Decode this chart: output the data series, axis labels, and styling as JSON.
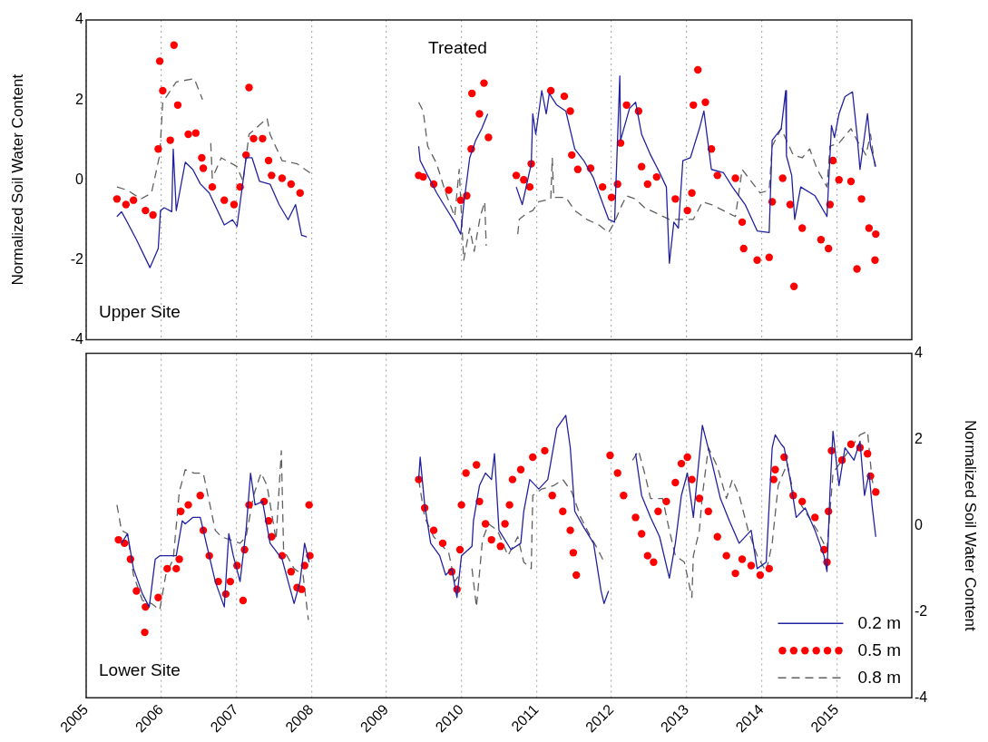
{
  "chart_data": [
    {
      "type": "line",
      "title": "Treated",
      "ylabel": "Normalized Soil Water Content",
      "annotations": [
        "Upper Site"
      ],
      "xlim": [
        2005,
        2016
      ],
      "xticks": [
        2005,
        2006,
        2007,
        2008,
        2009,
        2010,
        2011,
        2012,
        2013,
        2014,
        2015
      ],
      "ylim": [
        -4,
        4
      ],
      "yticks": [
        -4,
        -2,
        0,
        2,
        4
      ],
      "grid": "x",
      "tick_labels": "y",
      "series": [
        {
          "line_style": "solid",
          "color": "#2222a0",
          "x": [
            2005.41,
            2005.47,
            2005.53,
            2005.67,
            2005.85,
            2005.96,
            2005.99,
            2006.04,
            2006.14,
            2006.16,
            2006.2,
            2006.32,
            2006.42,
            2006.52,
            2006.64,
            2006.84,
            2006.95,
            2007.01,
            2007.13,
            2007.21,
            2007.31,
            2007.45,
            2007.57,
            2007.69,
            2007.79,
            2007.87,
            2007.94,
            2008.7,
            2009.43,
            2009.45,
            2009.55,
            2009.67,
            2009.79,
            2009.91,
            2009.99,
            2010.03,
            2010.11,
            2010.19,
            2010.27,
            2010.35,
            2010.5,
            2010.73,
            2010.81,
            2010.93,
            2010.95,
            2010.99,
            2011.07,
            2011.13,
            2011.17,
            2011.27,
            2011.39,
            2011.51,
            2011.63,
            2011.76,
            2011.86,
            2011.96,
            2012.04,
            2012.11,
            2012.12,
            2012.24,
            2012.32,
            2012.4,
            2012.52,
            2012.64,
            2012.73,
            2012.77,
            2012.83,
            2012.89,
            2012.95,
            2013.05,
            2013.17,
            2013.23,
            2013.33,
            2013.49,
            2013.61,
            2013.78,
            2013.94,
            2014.1,
            2014.14,
            2014.26,
            2014.32,
            2014.33,
            2014.4,
            2014.44,
            2014.52,
            2014.71,
            2014.87,
            2014.93,
            2014.97,
            2015.03,
            2015.11,
            2015.21,
            2015.27,
            2015.31,
            2015.41,
            2015.45,
            2015.52
          ],
          "values": [
            -0.92,
            -0.8,
            -1.0,
            -1.5,
            -2.2,
            -1.72,
            -0.77,
            -0.7,
            -0.8,
            0.77,
            -0.77,
            0.44,
            0.26,
            -0.1,
            -0.33,
            -1.13,
            -1.0,
            -1.17,
            0.55,
            0.55,
            -0.04,
            -0.11,
            -0.62,
            -1.0,
            -0.62,
            -1.39,
            -1.43,
            null,
            0.84,
            0.48,
            0.11,
            -0.33,
            -0.7,
            -1.06,
            -1.36,
            -0.62,
            0.55,
            0.99,
            1.28,
            1.65,
            null,
            -0.18,
            -0.62,
            0.4,
            1.65,
            1.14,
            2.23,
            1.65,
            2.16,
            1.87,
            1.72,
            0.77,
            0.48,
            0.04,
            -0.48,
            -0.99,
            -1.06,
            2.6,
            0.99,
            1.79,
            1.94,
            1.14,
            0.62,
            0.18,
            -0.18,
            -2.09,
            -1.06,
            -1.21,
            0.48,
            0.55,
            1.28,
            1.72,
            0.26,
            0.18,
            -0.18,
            -0.62,
            -1.28,
            -1.32,
            0.99,
            1.28,
            2.23,
            0.6,
            0.11,
            -0.99,
            -0.18,
            -0.4,
            -0.92,
            1.36,
            1.06,
            1.65,
            2.08,
            2.2,
            1.14,
            0.26,
            1.65,
            0.84,
            0.33
          ]
        },
        {
          "type": "scatter",
          "marker": "circle",
          "color": "#ff0000",
          "x": [
            2005.41,
            2005.53,
            2005.63,
            2005.79,
            2005.89,
            2005.96,
            2005.98,
            2006.02,
            2006.12,
            2006.17,
            2006.22,
            2006.36,
            2006.46,
            2006.54,
            2006.56,
            2006.68,
            2006.84,
            2006.97,
            2007.05,
            2007.13,
            2007.17,
            2007.23,
            2007.35,
            2007.43,
            2007.47,
            2007.61,
            2007.73,
            2007.85,
            2009.43,
            2009.49,
            2009.63,
            2009.83,
            2009.99,
            2010.07,
            2010.13,
            2010.14,
            2010.24,
            2010.3,
            2010.36,
            2010.73,
            2010.83,
            2010.91,
            2010.93,
            2011.19,
            2011.37,
            2011.45,
            2011.47,
            2011.55,
            2011.72,
            2011.88,
            2012.0,
            2012.08,
            2012.12,
            2012.2,
            2012.36,
            2012.4,
            2012.48,
            2012.6,
            2012.85,
            2013.01,
            2013.07,
            2013.09,
            2013.15,
            2013.25,
            2013.33,
            2013.41,
            2013.65,
            2013.74,
            2013.76,
            2013.94,
            2014.1,
            2014.14,
            2014.28,
            2014.38,
            2014.43,
            2014.54,
            2014.79,
            2014.89,
            2014.91,
            2014.95,
            2015.03,
            2015.19,
            2015.27,
            2015.33,
            2015.43,
            2015.51,
            2015.52
          ],
          "values": [
            -0.48,
            -0.62,
            -0.51,
            -0.77,
            -0.88,
            0.77,
            2.97,
            2.23,
            0.99,
            3.37,
            1.87,
            1.14,
            1.17,
            0.55,
            0.29,
            -0.18,
            -0.51,
            -0.62,
            -0.18,
            0.62,
            2.31,
            1.03,
            1.03,
            0.48,
            0.11,
            0.04,
            -0.11,
            -0.33,
            0.11,
            0.07,
            -0.11,
            -0.26,
            -0.51,
            -0.4,
            0.77,
            2.16,
            1.65,
            2.42,
            1.06,
            0.11,
            0,
            -0.18,
            0.4,
            2.23,
            2.09,
            1.72,
            0.62,
            0.26,
            0.29,
            -0.18,
            -0.44,
            -0.11,
            0.92,
            1.87,
            1.72,
            0.33,
            -0.11,
            0.07,
            -0.48,
            -0.77,
            -0.33,
            1.87,
            2.75,
            1.94,
            0.77,
            0.11,
            0.04,
            -1.06,
            -1.72,
            -2.01,
            -1.94,
            -0.55,
            0.04,
            -0.62,
            -2.67,
            -1.21,
            -1.5,
            -1.72,
            -0.62,
            0.48,
            0,
            -0.04,
            -2.23,
            -0.48,
            -1.21,
            -2.01,
            -1.36
          ]
        },
        {
          "line_style": "dashed",
          "color": "#606060",
          "x": [
            2005.41,
            2005.55,
            2005.73,
            2005.87,
            2005.98,
            2006.02,
            2006.2,
            2006.44,
            2006.55,
            2006.6,
            2006.66,
            2006.68,
            2006.8,
            2007.01,
            2007.09,
            2007.17,
            2007.41,
            2007.45,
            2007.61,
            2007.81,
            2008.0,
            2008.7,
            2009.43,
            2009.49,
            2009.55,
            2009.67,
            2009.79,
            2009.91,
            2009.97,
            2010.03,
            2010.11,
            2010.17,
            2010.25,
            2010.31,
            2010.33,
            2010.5,
            2010.75,
            2010.77,
            2010.87,
            2010.95,
            2011.03,
            2011.19,
            2011.21,
            2011.23,
            2011.39,
            2011.51,
            2011.67,
            2011.84,
            2011.96,
            2012.04,
            2012.12,
            2012.2,
            2012.32,
            2012.44,
            2012.6,
            2012.77,
            2012.93,
            2013.09,
            2013.21,
            2013.33,
            2013.49,
            2013.65,
            2013.74,
            2013.86,
            2013.98,
            2014.1,
            2014.14,
            2014.26,
            2014.42,
            2014.54,
            2014.64,
            2014.74,
            2014.87,
            2014.91,
            2015.03,
            2015.19,
            2015.27,
            2015.39,
            2015.45,
            2015.51
          ],
          "values": [
            -0.18,
            -0.26,
            -0.48,
            -0.33,
            0.62,
            1.94,
            2.45,
            2.53,
            2.01,
            null,
            0.92,
            0.04,
            0.55,
            0.33,
            -0.04,
            1.14,
            1.54,
            1.14,
            0.48,
            0.4,
            0.15,
            null,
            1.94,
            1.72,
            0.84,
            0.4,
            -0.33,
            -0.92,
            0.26,
            -2.01,
            -1.21,
            -1.79,
            -0.92,
            -0.55,
            -1.65,
            null,
            -1.36,
            -0.99,
            -0.84,
            -0.77,
            -0.55,
            -0.48,
            0.55,
            -0.44,
            -0.44,
            -0.77,
            -0.99,
            -1.14,
            -1.32,
            -1.06,
            -0.7,
            -0.4,
            -0.48,
            -0.7,
            -0.84,
            -0.99,
            -0.99,
            -0.99,
            -0.55,
            -0.62,
            -0.77,
            -0.92,
            0.26,
            -0.04,
            -0.33,
            -0.26,
            0.84,
            1.28,
            0.62,
            0.55,
            0.77,
            0.26,
            -0.18,
            0.84,
            0.92,
            1.28,
            0.99,
            0.62,
            1.14,
            0.33
          ]
        }
      ]
    },
    {
      "type": "line",
      "y2label": "Normalized Soil Water Content",
      "annotations": [
        "Lower Site"
      ],
      "xlim": [
        2005,
        2016
      ],
      "xticks": [
        2005,
        2006,
        2007,
        2008,
        2009,
        2010,
        2011,
        2012,
        2013,
        2014,
        2015
      ],
      "y2lim": [
        -4,
        4
      ],
      "y2ticks": [
        -4,
        -2,
        0,
        2,
        4
      ],
      "grid": "x",
      "legend": "bottom right",
      "series": [
        {
          "name": "0.2 m",
          "line_style": "solid",
          "axis": "y2",
          "color": "#2222a0",
          "x": [
            2005.47,
            2005.55,
            2005.63,
            2005.75,
            2005.84,
            2005.92,
            2005.98,
            2006.08,
            2006.2,
            2006.28,
            2006.32,
            2006.42,
            2006.52,
            2006.6,
            2006.72,
            2006.84,
            2006.9,
            2006.96,
            2007.05,
            2007.13,
            2007.19,
            2007.25,
            2007.35,
            2007.45,
            2007.61,
            2007.77,
            2007.85,
            2007.91,
            2007.97,
            2008.7,
            2009.43,
            2009.45,
            2009.51,
            2009.59,
            2009.71,
            2009.79,
            2009.87,
            2009.94,
            2010.0,
            2010.14,
            2010.16,
            2010.24,
            2010.32,
            2010.4,
            2010.44,
            2010.5,
            2010.66,
            2010.79,
            2010.83,
            2010.91,
            2011.03,
            2011.15,
            2011.27,
            2011.39,
            2011.45,
            2011.51,
            2011.63,
            2011.76,
            2011.86,
            2011.9,
            2011.96,
            2012.1,
            2012.32,
            2012.4,
            2012.52,
            2012.64,
            2012.77,
            2012.85,
            2012.93,
            2013.01,
            2013.09,
            2013.21,
            2013.33,
            2013.45,
            2013.57,
            2013.7,
            2013.86,
            2013.94,
            2014.06,
            2014.14,
            2014.18,
            2014.26,
            2014.3,
            2014.38,
            2014.46,
            2014.58,
            2014.71,
            2014.83,
            2014.87,
            2014.91,
            2014.95,
            2015.03,
            2015.11,
            2015.23,
            2015.31,
            2015.37,
            2015.43,
            2015.47,
            2015.52
          ],
          "values": [
            -0.41,
            -0.19,
            -1.0,
            -1.59,
            -1.89,
            -0.78,
            -0.7,
            -0.7,
            -0.7,
            0.11,
            0.04,
            0.19,
            0.19,
            -0.41,
            -1.3,
            -1.89,
            -0.19,
            -0.7,
            -1.3,
            -0.11,
            1.22,
            0.48,
            0.56,
            -0.41,
            -0.78,
            -1.81,
            -1.3,
            -0.41,
            -0.85,
            null,
            1.07,
            1.59,
            0.48,
            -0.41,
            -0.7,
            -1.15,
            -1.0,
            -1.67,
            -0.7,
            -0.48,
            0.11,
            0.93,
            1.22,
            1.07,
            1.67,
            -0.11,
            -0.56,
            -0.41,
            0.33,
            1.07,
            0.85,
            1.07,
            2.26,
            2.56,
            1.81,
            0.33,
            -0.04,
            -0.41,
            -1.52,
            -1.81,
            -1.52,
            null,
            1.67,
            0.7,
            0.19,
            -0.26,
            -1.22,
            -0.41,
            0.7,
            1.22,
            0.19,
            2.33,
            1.52,
            0.63,
            0.11,
            -0.41,
            -0.11,
            -1.0,
            -0.85,
            1.81,
            2.11,
            1.89,
            1.81,
            1.07,
            0.19,
            0.41,
            -0.11,
            -0.7,
            -1.07,
            0.78,
            2.19,
            0.93,
            1.81,
            1.52,
            1.96,
            0.7,
            1.22,
            0.48,
            -0.26
          ]
        },
        {
          "name": "0.5 m",
          "type": "scatter",
          "marker": "circle",
          "axis": "y2",
          "color": "#ff0000",
          "x": [
            2005.43,
            2005.51,
            2005.59,
            2005.67,
            2005.78,
            2005.79,
            2005.96,
            2006.08,
            2006.2,
            2006.24,
            2006.26,
            2006.36,
            2006.52,
            2006.56,
            2006.64,
            2006.76,
            2006.86,
            2006.92,
            2007.01,
            2007.09,
            2007.11,
            2007.17,
            2007.37,
            2007.43,
            2007.47,
            2007.61,
            2007.73,
            2007.81,
            2007.87,
            2007.91,
            2007.97,
            2007.98,
            2009.43,
            2009.51,
            2009.63,
            2009.75,
            2009.87,
            2009.94,
            2009.98,
            2010.0,
            2010.06,
            2010.2,
            2010.24,
            2010.32,
            2010.4,
            2010.52,
            2010.58,
            2010.64,
            2010.68,
            2010.79,
            2010.95,
            2011.11,
            2011.21,
            2011.35,
            2011.45,
            2011.49,
            2011.53,
            2011.98,
            2012.08,
            2012.16,
            2012.32,
            2012.4,
            2012.48,
            2012.56,
            2012.62,
            2012.73,
            2012.85,
            2012.93,
            2013.01,
            2013.07,
            2013.17,
            2013.29,
            2013.41,
            2013.53,
            2013.65,
            2013.74,
            2013.86,
            2013.98,
            2014.1,
            2014.16,
            2014.18,
            2014.3,
            2014.42,
            2014.54,
            2014.71,
            2014.83,
            2014.87,
            2014.89,
            2014.93,
            2015.07,
            2015.19,
            2015.31,
            2015.41,
            2015.45,
            2015.52
          ],
          "values": [
            -0.33,
            -0.41,
            -0.78,
            -1.52,
            -2.48,
            -1.89,
            -1.67,
            -1.0,
            -1.0,
            -0.78,
            0.33,
            0.48,
            0.7,
            -0.11,
            -0.7,
            -1.3,
            -1.59,
            -1.3,
            -0.93,
            -1.74,
            -0.56,
            0.48,
            0.56,
            0.11,
            -0.26,
            -0.7,
            -1.07,
            -1.44,
            -1.48,
            -0.93,
            0.48,
            -0.7,
            1.07,
            0.41,
            -0.11,
            -0.41,
            -1.07,
            -1.48,
            -0.56,
            0.48,
            1.22,
            1.41,
            0.56,
            0.04,
            -0.33,
            -0.48,
            0.04,
            0.48,
            1.07,
            1.3,
            1.59,
            1.74,
            0.7,
            0.33,
            -0.11,
            -0.63,
            -1.15,
            1.63,
            1.22,
            0.7,
            0.19,
            -0.19,
            -0.7,
            -0.85,
            0.33,
            0.56,
            1.0,
            1.44,
            1.59,
            1.07,
            0.63,
            0.33,
            -0.26,
            -0.7,
            -1.11,
            -0.78,
            -0.93,
            -1.15,
            -1.0,
            1.07,
            1.3,
            1.59,
            0.7,
            0.56,
            0.19,
            -0.56,
            -0.85,
            0.33,
            1.74,
            1.52,
            1.89,
            1.81,
            1.67,
            1.15,
            0.78
          ]
        },
        {
          "name": "0.8 m",
          "line_style": "dashed",
          "axis": "y2",
          "color": "#606060",
          "x": [
            2005.41,
            2005.47,
            2005.55,
            2005.63,
            2005.75,
            2005.87,
            2005.98,
            2006.06,
            2006.16,
            2006.24,
            2006.32,
            2006.44,
            2006.56,
            2006.72,
            2006.8,
            2006.92,
            2007.05,
            2007.13,
            2007.23,
            2007.33,
            2007.41,
            2007.53,
            2007.6,
            2007.63,
            2007.77,
            2007.89,
            2007.96,
            2008.7,
            2009.43,
            2009.51,
            2009.63,
            2009.83,
            2009.91,
            2009.97,
            2010.05,
            2010.14,
            2010.2,
            2010.28,
            2010.36,
            2010.48,
            2010.62,
            2010.75,
            2010.83,
            2010.93,
            2010.95,
            2011.07,
            2011.23,
            2011.35,
            2011.47,
            2011.59,
            2011.72,
            2011.82,
            2011.9,
            2012.1,
            2012.28,
            2012.36,
            2012.44,
            2012.52,
            2012.68,
            2012.77,
            2012.85,
            2012.97,
            2013.07,
            2013.09,
            2013.17,
            2013.21,
            2013.29,
            2013.41,
            2013.53,
            2013.61,
            2013.7,
            2013.82,
            2013.94,
            2014.06,
            2014.14,
            2014.22,
            2014.34,
            2014.42,
            2014.58,
            2014.74,
            2014.87,
            2014.95,
            2015.07,
            2015.19,
            2015.31,
            2015.41,
            2015.47,
            2015.51
          ],
          "values": [
            0.48,
            -0.11,
            -0.19,
            -1.15,
            -1.74,
            -1.81,
            -1.96,
            -1.15,
            -0.78,
            0.78,
            1.3,
            1.22,
            1.22,
            -0.11,
            -0.26,
            -0.33,
            -0.41,
            -0.26,
            0.7,
            1.22,
            0.93,
            -0.33,
            1.74,
            -0.56,
            -1.0,
            -1.15,
            -2.19,
            null,
            1.07,
            0.19,
            -0.26,
            -0.63,
            -1.3,
            -1.15,
            null,
            -1.0,
            -1.89,
            -0.33,
            0.04,
            -0.11,
            -0.7,
            -0.26,
            -0.85,
            -1.0,
            0.7,
            0.85,
            0.93,
            1.07,
            0.78,
            0.19,
            -0.26,
            -0.56,
            -0.85,
            null,
            1.52,
            1.74,
            1.22,
            0.63,
            0.63,
            -0.11,
            -0.7,
            -0.85,
            -1.67,
            -0.7,
            -0.11,
            0.7,
            1.81,
            1.37,
            0.63,
            1.07,
            0.7,
            -0.11,
            -0.7,
            -1.07,
            -0.41,
            0.93,
            1.44,
            0.78,
            0.33,
            -0.11,
            -0.56,
            1.22,
            1.52,
            1.81,
            2.11,
            2.19,
            1.07,
            0.78
          ]
        }
      ]
    }
  ]
}
